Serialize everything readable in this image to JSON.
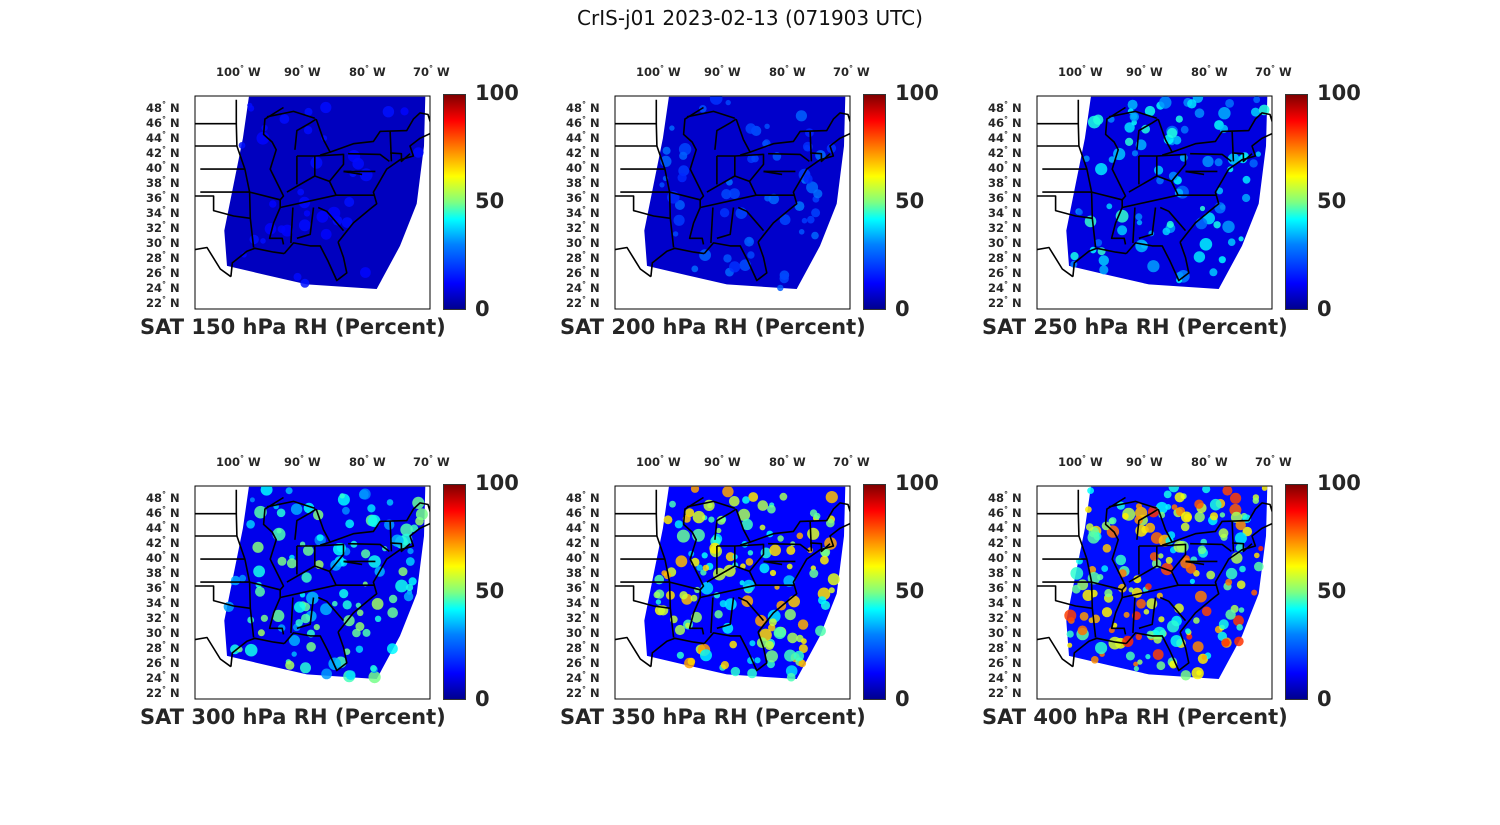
{
  "figure_title": "CrIS-j01 2023-02-13 (071903 UTC)",
  "lon_labels": [
    {
      "deg": "100",
      "hem": "W"
    },
    {
      "deg": "90",
      "hem": "W"
    },
    {
      "deg": "80",
      "hem": "W"
    },
    {
      "deg": "70",
      "hem": "W"
    }
  ],
  "lat_labels": [
    {
      "deg": "48",
      "hem": "N"
    },
    {
      "deg": "46",
      "hem": "N"
    },
    {
      "deg": "44",
      "hem": "N"
    },
    {
      "deg": "42",
      "hem": "N"
    },
    {
      "deg": "40",
      "hem": "N"
    },
    {
      "deg": "38",
      "hem": "N"
    },
    {
      "deg": "36",
      "hem": "N"
    },
    {
      "deg": "34",
      "hem": "N"
    },
    {
      "deg": "32",
      "hem": "N"
    },
    {
      "deg": "30",
      "hem": "N"
    },
    {
      "deg": "28",
      "hem": "N"
    },
    {
      "deg": "26",
      "hem": "N"
    },
    {
      "deg": "24",
      "hem": "N"
    },
    {
      "deg": "22",
      "hem": "N"
    }
  ],
  "colorbar": {
    "ticks": [
      "100",
      "50",
      "0"
    ],
    "colormap": "jet",
    "range": [
      0,
      100
    ],
    "colors": [
      "#00008f",
      "#0000ff",
      "#0080ff",
      "#00ffff",
      "#80ff80",
      "#ffff00",
      "#ff8000",
      "#ff0000",
      "#800000"
    ]
  },
  "panels": [
    {
      "title": "SAT 150 hPa RH (Percent)",
      "level_hpa": 150,
      "moisture": 0.02
    },
    {
      "title": "SAT 200 hPa RH (Percent)",
      "level_hpa": 200,
      "moisture": 0.12
    },
    {
      "title": "SAT 250 hPa RH (Percent)",
      "level_hpa": 250,
      "moisture": 0.28
    },
    {
      "title": "SAT 300 hPa RH (Percent)",
      "level_hpa": 300,
      "moisture": 0.38
    },
    {
      "title": "SAT 350 hPa RH (Percent)",
      "level_hpa": 350,
      "moisture": 0.55
    },
    {
      "title": "SAT 400 hPa RH (Percent)",
      "level_hpa": 400,
      "moisture": 0.65
    }
  ]
}
